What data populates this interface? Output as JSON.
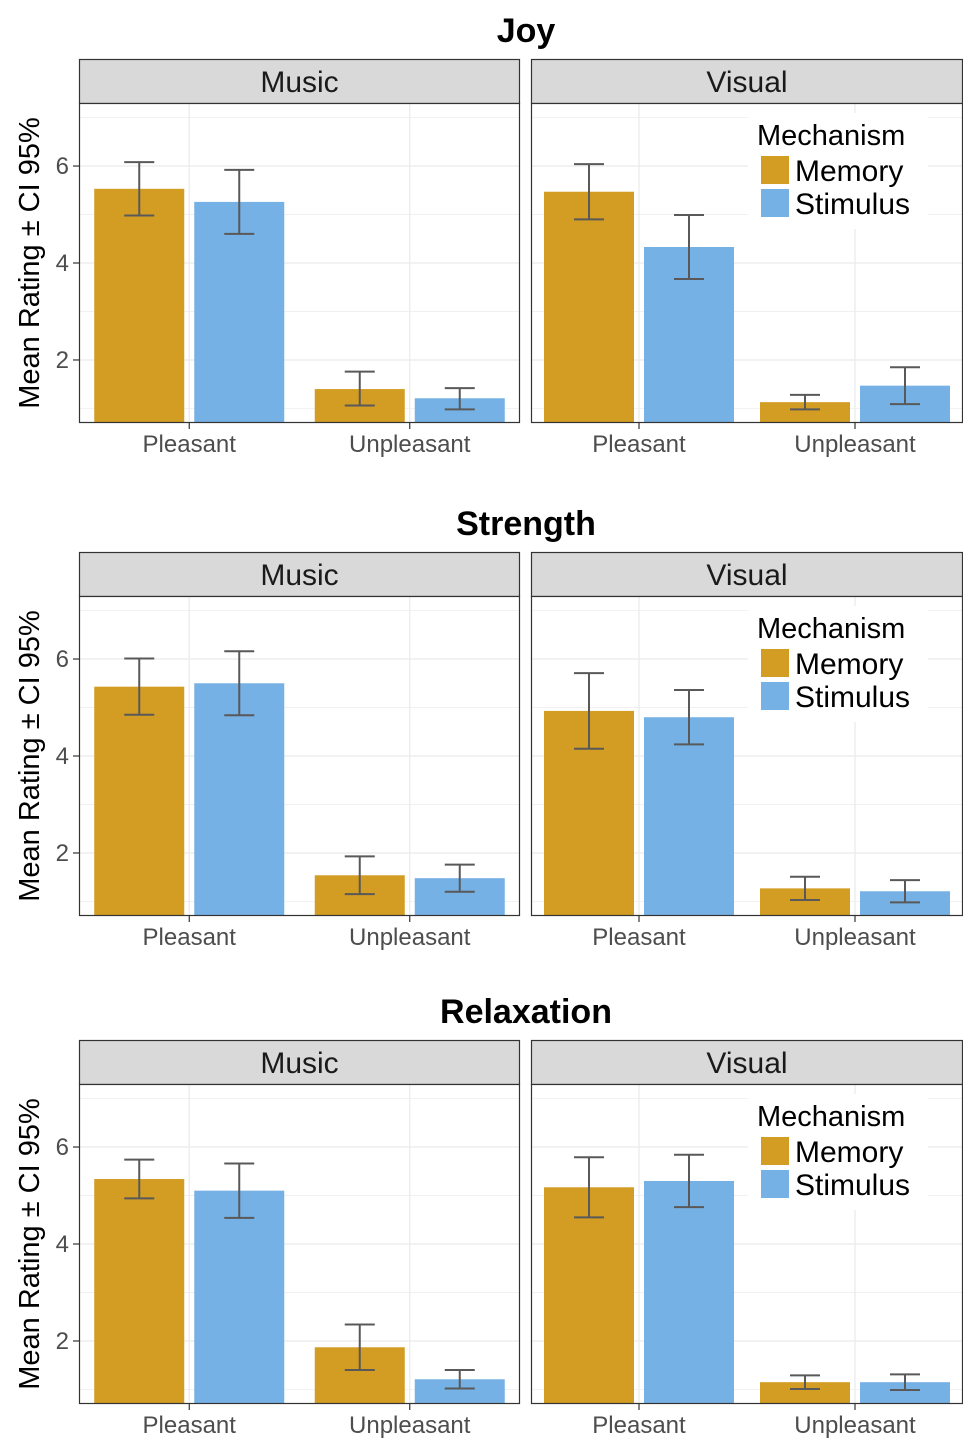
{
  "figure": {
    "ylabel": "Mean Rating ± CI 95%",
    "categories": [
      "Pleasant",
      "Unpleasant"
    ],
    "panels": [
      "Music",
      "Visual"
    ],
    "legend": {
      "title": "Mechanism",
      "entries": [
        {
          "name": "Memory",
          "color": "#D39C23"
        },
        {
          "name": "Stimulus",
          "color": "#76B1E5"
        }
      ],
      "placement": "top-right of Visual panel"
    },
    "y_ticks": [
      2,
      4,
      6
    ],
    "ylim": [
      0.7,
      7.3
    ],
    "grid": true
  },
  "chart_data": [
    {
      "type": "bar",
      "title": "Joy",
      "panels": [
        {
          "name": "Music",
          "categories": [
            "Pleasant",
            "Unpleasant"
          ],
          "series": [
            {
              "name": "Memory",
              "values": [
                5.53,
                1.4
              ],
              "ci_low": [
                4.98,
                1.06
              ],
              "ci_high": [
                6.08,
                1.76
              ]
            },
            {
              "name": "Stimulus",
              "values": [
                5.26,
                1.21
              ],
              "ci_low": [
                4.6,
                0.98
              ],
              "ci_high": [
                5.92,
                1.42
              ]
            }
          ]
        },
        {
          "name": "Visual",
          "categories": [
            "Pleasant",
            "Unpleasant"
          ],
          "series": [
            {
              "name": "Memory",
              "values": [
                5.47,
                1.13
              ],
              "ci_low": [
                4.9,
                0.98
              ],
              "ci_high": [
                6.04,
                1.28
              ]
            },
            {
              "name": "Stimulus",
              "values": [
                4.33,
                1.47
              ],
              "ci_low": [
                3.67,
                1.09
              ],
              "ci_high": [
                4.99,
                1.85
              ]
            }
          ]
        }
      ]
    },
    {
      "type": "bar",
      "title": "Strength",
      "panels": [
        {
          "name": "Music",
          "categories": [
            "Pleasant",
            "Unpleasant"
          ],
          "series": [
            {
              "name": "Memory",
              "values": [
                5.43,
                1.54
              ],
              "ci_low": [
                4.85,
                1.15
              ],
              "ci_high": [
                6.01,
                1.93
              ]
            },
            {
              "name": "Stimulus",
              "values": [
                5.5,
                1.48
              ],
              "ci_low": [
                4.84,
                1.2
              ],
              "ci_high": [
                6.16,
                1.76
              ]
            }
          ]
        },
        {
          "name": "Visual",
          "categories": [
            "Pleasant",
            "Unpleasant"
          ],
          "series": [
            {
              "name": "Memory",
              "values": [
                4.93,
                1.27
              ],
              "ci_low": [
                4.15,
                1.03
              ],
              "ci_high": [
                5.71,
                1.51
              ]
            },
            {
              "name": "Stimulus",
              "values": [
                4.8,
                1.21
              ],
              "ci_low": [
                4.24,
                0.98
              ],
              "ci_high": [
                5.36,
                1.44
              ]
            }
          ]
        }
      ]
    },
    {
      "type": "bar",
      "title": "Relaxation",
      "panels": [
        {
          "name": "Music",
          "categories": [
            "Pleasant",
            "Unpleasant"
          ],
          "series": [
            {
              "name": "Memory",
              "values": [
                5.34,
                1.87
              ],
              "ci_low": [
                4.94,
                1.4
              ],
              "ci_high": [
                5.74,
                2.34
              ]
            },
            {
              "name": "Stimulus",
              "values": [
                5.1,
                1.21
              ],
              "ci_low": [
                4.54,
                1.02
              ],
              "ci_high": [
                5.66,
                1.4
              ]
            }
          ]
        },
        {
          "name": "Visual",
          "categories": [
            "Pleasant",
            "Unpleasant"
          ],
          "series": [
            {
              "name": "Memory",
              "values": [
                5.17,
                1.15
              ],
              "ci_low": [
                4.55,
                1.01
              ],
              "ci_high": [
                5.79,
                1.29
              ]
            },
            {
              "name": "Stimulus",
              "values": [
                5.3,
                1.15
              ],
              "ci_low": [
                4.76,
                0.99
              ],
              "ci_high": [
                5.84,
                1.31
              ]
            }
          ]
        }
      ]
    }
  ]
}
